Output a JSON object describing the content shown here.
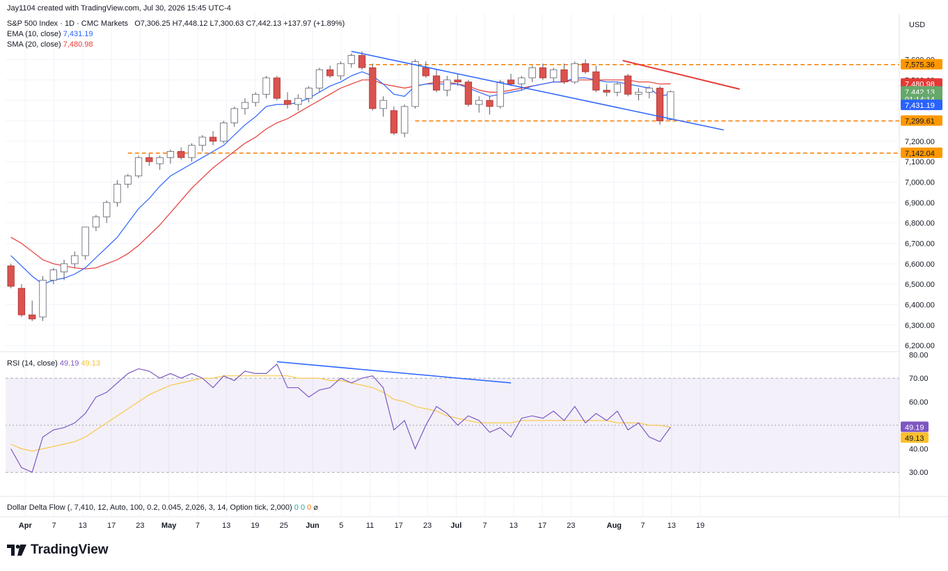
{
  "attribution": "Jay1104 created with TradingView.com, Jul 30, 2026 15:45 UTC-4",
  "header": {
    "symbol": "S&P 500 Index · 1D · CMC Markets",
    "ohlc": "O7,306.25  H7,448.12  L7,300.63  C7,442.13  +137.97 (+1.89%)",
    "ema_label": "EMA (10, close)",
    "ema_value": "7,431.19",
    "sma_label": "SMA (20, close)",
    "sma_value": "7,480.98"
  },
  "currency": "USD",
  "rsi_header": {
    "label": "RSI (14, close)",
    "value": "49.19",
    "ma_value": "49.13"
  },
  "ddf_header": {
    "label": "Dollar Delta Flow (, 7,410, 12, Auto, 100, 0.2, 0.045, 2,026, 3, 14, Option tick, 2,000)",
    "v1": "0",
    "v2": "0",
    "v3": "0",
    "sym": "⌀"
  },
  "logo_text": "TradingView",
  "colors": {
    "up": "#ffffff",
    "down": "#d9534f",
    "ema": "#2962ff",
    "sma": "#e53935",
    "rsi": "#7e57c2",
    "rsi_ma": "#fbc02d",
    "level": "#f57c00",
    "trend_blue": "#2962ff",
    "trend_red": "#e53935"
  },
  "chart_data": {
    "type": "candlestick",
    "price_axis_ticks": [
      "7,600.00",
      "7,500.00",
      "7,400.00",
      "7,300.00",
      "7,200.00",
      "7,100.00",
      "7,000.00",
      "6,900.00",
      "6,800.00",
      "6,700.00",
      "6,600.00",
      "6,500.00",
      "6,400.00",
      "6,300.00",
      "6,200.00"
    ],
    "price_axis_values": [
      7600,
      7500,
      7400,
      7300,
      7200,
      7100,
      7000,
      6900,
      6800,
      6700,
      6600,
      6500,
      6400,
      6300,
      6200
    ],
    "ylim": [
      6170,
      7680
    ],
    "x_ticks": [
      "Apr",
      "7",
      "13",
      "17",
      "23",
      "May",
      "7",
      "13",
      "19",
      "25",
      "Jun",
      "5",
      "11",
      "17",
      "23",
      "Jul",
      "7",
      "13",
      "17",
      "23",
      "Aug",
      "7",
      "13",
      "19"
    ],
    "x_tick_bars": [
      1,
      3,
      5,
      7,
      9,
      11,
      13,
      15,
      17,
      19,
      21,
      23,
      25,
      27,
      29,
      31,
      33,
      35,
      37,
      39,
      42,
      44,
      46,
      48
    ],
    "candles": [
      {
        "o": 6590,
        "h": 6600,
        "l": 6480,
        "c": 6490
      },
      {
        "o": 6480,
        "h": 6500,
        "l": 6340,
        "c": 6350
      },
      {
        "o": 6350,
        "h": 6420,
        "l": 6320,
        "c": 6330
      },
      {
        "o": 6340,
        "h": 6540,
        "l": 6320,
        "c": 6520
      },
      {
        "o": 6520,
        "h": 6580,
        "l": 6500,
        "c": 6570
      },
      {
        "o": 6560,
        "h": 6620,
        "l": 6520,
        "c": 6600
      },
      {
        "o": 6600,
        "h": 6660,
        "l": 6580,
        "c": 6640
      },
      {
        "o": 6640,
        "h": 6780,
        "l": 6620,
        "c": 6780
      },
      {
        "o": 6780,
        "h": 6840,
        "l": 6760,
        "c": 6830
      },
      {
        "o": 6830,
        "h": 6910,
        "l": 6800,
        "c": 6900
      },
      {
        "o": 6900,
        "h": 7010,
        "l": 6880,
        "c": 6990
      },
      {
        "o": 6990,
        "h": 7040,
        "l": 6970,
        "c": 7030
      },
      {
        "o": 7030,
        "h": 7130,
        "l": 7020,
        "c": 7120
      },
      {
        "o": 7120,
        "h": 7140,
        "l": 7080,
        "c": 7100
      },
      {
        "o": 7090,
        "h": 7130,
        "l": 7060,
        "c": 7120
      },
      {
        "o": 7120,
        "h": 7160,
        "l": 7090,
        "c": 7150
      },
      {
        "o": 7150,
        "h": 7170,
        "l": 7110,
        "c": 7120
      },
      {
        "o": 7120,
        "h": 7190,
        "l": 7100,
        "c": 7180
      },
      {
        "o": 7180,
        "h": 7230,
        "l": 7150,
        "c": 7220
      },
      {
        "o": 7220,
        "h": 7250,
        "l": 7180,
        "c": 7200
      },
      {
        "o": 7200,
        "h": 7300,
        "l": 7190,
        "c": 7290
      },
      {
        "o": 7290,
        "h": 7370,
        "l": 7270,
        "c": 7360
      },
      {
        "o": 7360,
        "h": 7410,
        "l": 7330,
        "c": 7390
      },
      {
        "o": 7390,
        "h": 7440,
        "l": 7370,
        "c": 7430
      },
      {
        "o": 7430,
        "h": 7520,
        "l": 7410,
        "c": 7510
      },
      {
        "o": 7510,
        "h": 7520,
        "l": 7400,
        "c": 7410
      },
      {
        "o": 7400,
        "h": 7440,
        "l": 7360,
        "c": 7380
      },
      {
        "o": 7380,
        "h": 7430,
        "l": 7350,
        "c": 7410
      },
      {
        "o": 7410,
        "h": 7470,
        "l": 7390,
        "c": 7460
      },
      {
        "o": 7460,
        "h": 7560,
        "l": 7440,
        "c": 7550
      },
      {
        "o": 7550,
        "h": 7570,
        "l": 7510,
        "c": 7520
      },
      {
        "o": 7520,
        "h": 7590,
        "l": 7500,
        "c": 7580
      },
      {
        "o": 7580,
        "h": 7630,
        "l": 7560,
        "c": 7620
      },
      {
        "o": 7620,
        "h": 7640,
        "l": 7550,
        "c": 7560
      },
      {
        "o": 7560,
        "h": 7580,
        "l": 7350,
        "c": 7360
      },
      {
        "o": 7360,
        "h": 7420,
        "l": 7320,
        "c": 7400
      },
      {
        "o": 7350,
        "h": 7370,
        "l": 7230,
        "c": 7240
      },
      {
        "o": 7240,
        "h": 7380,
        "l": 7220,
        "c": 7370
      },
      {
        "o": 7370,
        "h": 7600,
        "l": 7360,
        "c": 7590
      },
      {
        "o": 7560,
        "h": 7590,
        "l": 7510,
        "c": 7520
      },
      {
        "o": 7520,
        "h": 7550,
        "l": 7440,
        "c": 7450
      },
      {
        "o": 7450,
        "h": 7520,
        "l": 7420,
        "c": 7500
      },
      {
        "o": 7500,
        "h": 7530,
        "l": 7470,
        "c": 7490
      },
      {
        "o": 7490,
        "h": 7500,
        "l": 7370,
        "c": 7380
      },
      {
        "o": 7380,
        "h": 7420,
        "l": 7340,
        "c": 7400
      },
      {
        "o": 7400,
        "h": 7420,
        "l": 7330,
        "c": 7370
      },
      {
        "o": 7370,
        "h": 7500,
        "l": 7360,
        "c": 7490
      },
      {
        "o": 7500,
        "h": 7530,
        "l": 7470,
        "c": 7480
      },
      {
        "o": 7480,
        "h": 7520,
        "l": 7450,
        "c": 7510
      },
      {
        "o": 7510,
        "h": 7570,
        "l": 7490,
        "c": 7560
      },
      {
        "o": 7560,
        "h": 7580,
        "l": 7500,
        "c": 7510
      },
      {
        "o": 7510,
        "h": 7560,
        "l": 7490,
        "c": 7550
      },
      {
        "o": 7550,
        "h": 7580,
        "l": 7480,
        "c": 7490
      },
      {
        "o": 7490,
        "h": 7590,
        "l": 7480,
        "c": 7580
      },
      {
        "o": 7580,
        "h": 7600,
        "l": 7530,
        "c": 7540
      },
      {
        "o": 7540,
        "h": 7570,
        "l": 7440,
        "c": 7450
      },
      {
        "o": 7450,
        "h": 7480,
        "l": 7420,
        "c": 7440
      },
      {
        "o": 7440,
        "h": 7490,
        "l": 7420,
        "c": 7480
      },
      {
        "o": 7520,
        "h": 7530,
        "l": 7420,
        "c": 7430
      },
      {
        "o": 7430,
        "h": 7460,
        "l": 7400,
        "c": 7440
      },
      {
        "o": 7440,
        "h": 7470,
        "l": 7410,
        "c": 7460
      },
      {
        "o": 7460,
        "h": 7470,
        "l": 7280,
        "c": 7300
      },
      {
        "o": 7306.25,
        "h": 7448.12,
        "l": 7300.63,
        "c": 7442.13
      }
    ],
    "ema_10": [
      6640,
      6590,
      6540,
      6500,
      6520,
      6530,
      6550,
      6580,
      6630,
      6680,
      6730,
      6800,
      6870,
      6920,
      6980,
      7030,
      7060,
      7090,
      7120,
      7150,
      7180,
      7230,
      7280,
      7320,
      7370,
      7380,
      7380,
      7390,
      7410,
      7440,
      7470,
      7490,
      7520,
      7540,
      7520,
      7480,
      7430,
      7420,
      7470,
      7480,
      7480,
      7480,
      7480,
      7460,
      7440,
      7420,
      7430,
      7440,
      7450,
      7470,
      7480,
      7490,
      7490,
      7510,
      7510,
      7500,
      7490,
      7490,
      7480,
      7470,
      7460,
      7420,
      7431.19
    ],
    "sma_20": [
      6730,
      6700,
      6660,
      6620,
      6600,
      6590,
      6580,
      6575,
      6580,
      6600,
      6620,
      6650,
      6690,
      6740,
      6790,
      6850,
      6910,
      6970,
      7020,
      7070,
      7110,
      7150,
      7190,
      7220,
      7260,
      7290,
      7310,
      7340,
      7370,
      7400,
      7430,
      7460,
      7480,
      7500,
      7500,
      7480,
      7470,
      7460,
      7470,
      7480,
      7490,
      7490,
      7480,
      7470,
      7450,
      7440,
      7440,
      7450,
      7460,
      7470,
      7480,
      7490,
      7490,
      7500,
      7500,
      7500,
      7500,
      7500,
      7500,
      7490,
      7490,
      7480,
      7480.98
    ],
    "levels": [
      7575.36,
      7299.61,
      7142.04
    ],
    "price_labels": [
      "7,575.36",
      "7,480.98",
      "7,442.13",
      "01:14:14",
      "7,431.19",
      "7,299.61",
      "7,142.04"
    ],
    "rsi": {
      "ticks": [
        "80.00",
        "70.00",
        "60.00",
        "50.00",
        "40.00",
        "30.00"
      ],
      "tick_values": [
        80,
        70,
        60,
        50,
        40,
        30
      ],
      "ylim": [
        20,
        81
      ],
      "band": [
        30,
        70
      ],
      "rsi_14": [
        40,
        32,
        30,
        45,
        48,
        49,
        51,
        55,
        62,
        64,
        68,
        72,
        74,
        73,
        70,
        72,
        70,
        72,
        70,
        66,
        71,
        69,
        73,
        72,
        72,
        76,
        66,
        66,
        62,
        65,
        66,
        70,
        68,
        70,
        71,
        66,
        48,
        52,
        40,
        50,
        58,
        55,
        50,
        54,
        52,
        47,
        49,
        45,
        53,
        54,
        53,
        56,
        52,
        58,
        51,
        55,
        52,
        56,
        48,
        51,
        45,
        43,
        49.19
      ],
      "rsi_ma": [
        42,
        40,
        39,
        40,
        41,
        42,
        43,
        45,
        48,
        51,
        54,
        57,
        60,
        63,
        65,
        67,
        68,
        69,
        70,
        70,
        71,
        71,
        71,
        71,
        71,
        71,
        71,
        70,
        70,
        70,
        69,
        69,
        68,
        67,
        66,
        64,
        61,
        60,
        58,
        57,
        56,
        54,
        53,
        52,
        51,
        51,
        51,
        51,
        52,
        52,
        52,
        52,
        52,
        52,
        52,
        52,
        52,
        51,
        51,
        51,
        50,
        50,
        49.13
      ]
    }
  }
}
